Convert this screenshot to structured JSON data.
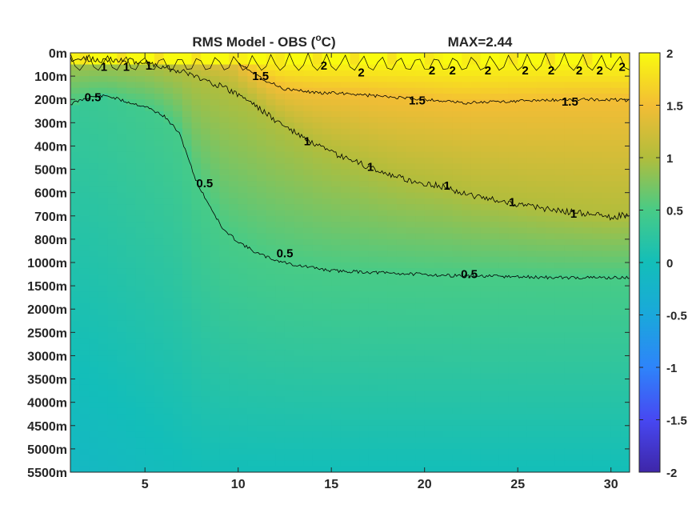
{
  "chart_data": {
    "type": "heatmap",
    "title": "RMS Model - OBS (",
    "title_unit": "o",
    "title_unit_after": "C)",
    "max_label": "MAX=2.44",
    "colormap": "parula",
    "colors": {
      "c_min": "#3e26a8",
      "c_mid": "#13beb9",
      "c_max": "#f9fb0e",
      "contour": "#000000"
    },
    "clim": [
      -2,
      2
    ],
    "xlim": [
      1,
      31
    ],
    "x_ticks": [
      5,
      10,
      15,
      20,
      25,
      30
    ],
    "y_tick_labels": [
      "0m",
      "100m",
      "200m",
      "300m",
      "400m",
      "500m",
      "600m",
      "700m",
      "800m",
      "1000m",
      "1500m",
      "2000m",
      "2500m",
      "3000m",
      "3500m",
      "4000m",
      "4500m",
      "5000m",
      "5500m"
    ],
    "colorbar_ticks": [
      2,
      1.5,
      1,
      0.5,
      0,
      -0.5,
      -1,
      -1.5,
      -2
    ],
    "contour_levels": [
      0.5,
      1,
      1.5,
      2
    ],
    "contour_labels": [
      {
        "text": "1",
        "x": 2.8,
        "y": 0.6
      },
      {
        "text": "1",
        "x": 4.0,
        "y": 0.6
      },
      {
        "text": "1",
        "x": 5.2,
        "y": 0.55
      },
      {
        "text": "1.5",
        "x": 11.2,
        "y": 1.0
      },
      {
        "text": "2",
        "x": 14.6,
        "y": 0.55
      },
      {
        "text": "2",
        "x": 16.6,
        "y": 0.85
      },
      {
        "text": "2",
        "x": 20.4,
        "y": 0.75
      },
      {
        "text": "2",
        "x": 21.5,
        "y": 0.75
      },
      {
        "text": "2",
        "x": 23.4,
        "y": 0.75
      },
      {
        "text": "2",
        "x": 25.4,
        "y": 0.75
      },
      {
        "text": "2",
        "x": 26.8,
        "y": 0.75
      },
      {
        "text": "2",
        "x": 28.3,
        "y": 0.75
      },
      {
        "text": "2",
        "x": 29.4,
        "y": 0.75
      },
      {
        "text": "2",
        "x": 30.6,
        "y": 0.6
      },
      {
        "text": "0.5",
        "x": 2.2,
        "y": 1.9
      },
      {
        "text": "1.5",
        "x": 19.6,
        "y": 2.05
      },
      {
        "text": "1.5",
        "x": 27.8,
        "y": 2.1
      },
      {
        "text": "1",
        "x": 13.7,
        "y": 3.8
      },
      {
        "text": "1",
        "x": 17.1,
        "y": 4.9
      },
      {
        "text": "0.5",
        "x": 8.2,
        "y": 5.6
      },
      {
        "text": "1",
        "x": 21.2,
        "y": 5.7
      },
      {
        "text": "1",
        "x": 24.7,
        "y": 6.4
      },
      {
        "text": "1",
        "x": 28.0,
        "y": 6.9
      },
      {
        "text": "0.5",
        "x": 12.5,
        "y": 8.6
      },
      {
        "text": "0.5",
        "x": 22.4,
        "y": 9.5
      }
    ],
    "contour_05": [
      [
        1,
        2.2
      ],
      [
        2,
        1.9
      ],
      [
        3,
        1.85
      ],
      [
        4,
        2.1
      ],
      [
        5,
        2.3
      ],
      [
        6,
        2.7
      ],
      [
        6.8,
        3.4
      ],
      [
        7.2,
        4.2
      ],
      [
        7.6,
        5.2
      ],
      [
        8.0,
        5.9
      ],
      [
        8.5,
        6.6
      ],
      [
        9.2,
        7.6
      ],
      [
        10,
        8.1
      ],
      [
        11,
        8.6
      ],
      [
        12,
        8.9
      ],
      [
        13,
        9.1
      ],
      [
        15,
        9.35
      ],
      [
        18,
        9.45
      ],
      [
        21,
        9.55
      ],
      [
        24,
        9.6
      ],
      [
        27,
        9.65
      ],
      [
        31,
        9.65
      ]
    ],
    "contour_1": [
      [
        1,
        0.25
      ],
      [
        3,
        0.3
      ],
      [
        5,
        0.4
      ],
      [
        7,
        0.8
      ],
      [
        9,
        1.4
      ],
      [
        10.5,
        2.0
      ],
      [
        12,
        2.9
      ],
      [
        13,
        3.4
      ],
      [
        14,
        3.9
      ],
      [
        15,
        4.3
      ],
      [
        16,
        4.6
      ],
      [
        17,
        4.9
      ],
      [
        18,
        5.2
      ],
      [
        19,
        5.45
      ],
      [
        20,
        5.6
      ],
      [
        21,
        5.75
      ],
      [
        22,
        6.0
      ],
      [
        23,
        6.2
      ],
      [
        24,
        6.35
      ],
      [
        25,
        6.5
      ],
      [
        26,
        6.65
      ],
      [
        27,
        6.75
      ],
      [
        28,
        6.85
      ],
      [
        29,
        6.95
      ],
      [
        30,
        7.05
      ],
      [
        31,
        6.95
      ]
    ],
    "contour_15": [
      [
        10,
        0.4
      ],
      [
        11.5,
        1.2
      ],
      [
        12.5,
        1.55
      ],
      [
        14,
        1.7
      ],
      [
        16,
        1.75
      ],
      [
        18,
        1.9
      ],
      [
        20,
        2.0
      ],
      [
        22,
        2.15
      ],
      [
        24,
        2.1
      ],
      [
        26,
        2.05
      ],
      [
        28,
        2.0
      ],
      [
        30,
        2.0
      ],
      [
        31,
        2.05
      ]
    ]
  }
}
